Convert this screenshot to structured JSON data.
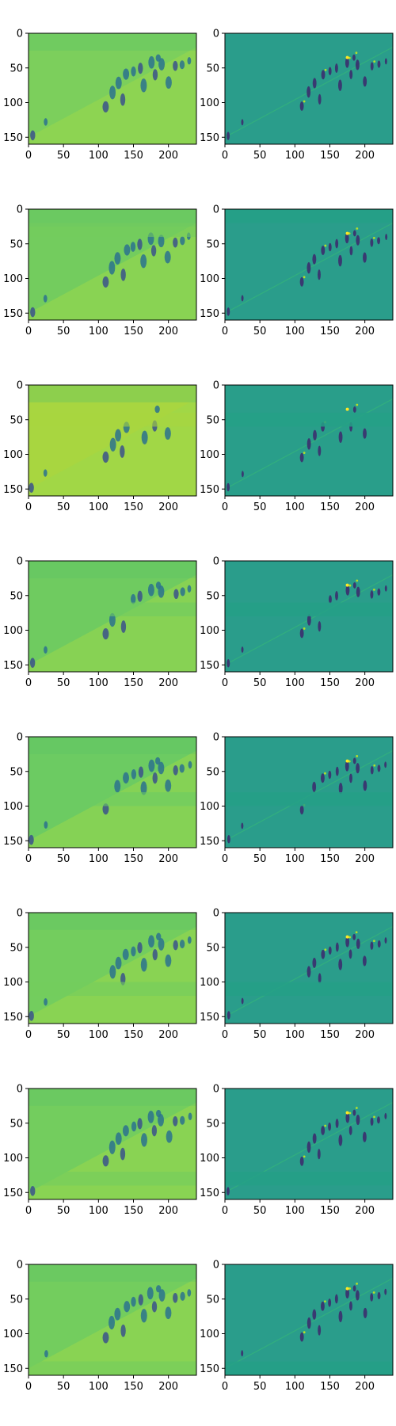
{
  "chart_data": {
    "type": "heatmap",
    "title": "",
    "layout": {
      "rows": 8,
      "cols": 2
    },
    "axes_template": {
      "xlim": [
        0,
        240
      ],
      "ylim": [
        160,
        0
      ],
      "xticks": [
        0,
        50,
        100,
        150,
        200
      ],
      "yticks": [
        0,
        50,
        100,
        150
      ],
      "xtick_labels": [
        "0",
        "50",
        "100",
        "150",
        "200"
      ],
      "ytick_labels": [
        "0",
        "50",
        "100",
        "150"
      ]
    },
    "colormap": "viridis",
    "panels_left": [
      {
        "row": 0,
        "band_start": null,
        "band_end": null,
        "background": "#7ccf5c",
        "dark_spots": 14
      },
      {
        "row": 1,
        "band_start": 20,
        "band_end": 40,
        "background": "#73cc5e",
        "dark_spots": 14
      },
      {
        "row": 2,
        "band_start": 40,
        "band_end": 60,
        "background": "#a8d640",
        "dark_spots": 12
      },
      {
        "row": 3,
        "band_start": 60,
        "band_end": 80,
        "background": "#6fcb60",
        "dark_spots": 14
      },
      {
        "row": 4,
        "band_start": 80,
        "band_end": 100,
        "background": "#6ccb62",
        "dark_spots": 14
      },
      {
        "row": 5,
        "band_start": 100,
        "band_end": 120,
        "background": "#73cd5e",
        "dark_spots": 14
      },
      {
        "row": 6,
        "band_start": 120,
        "band_end": 140,
        "background": "#73cd5e",
        "dark_spots": 14
      },
      {
        "row": 7,
        "band_start": 140,
        "band_end": 160,
        "background": "#73cd5e",
        "dark_spots": 14
      }
    ],
    "panels_right": [
      {
        "row": 0,
        "band_start": null,
        "band_end": null,
        "background": "#2a9d8b"
      },
      {
        "row": 1,
        "band_start": 0,
        "band_end": 20,
        "background": "#2a9d8b"
      },
      {
        "row": 2,
        "band_start": 40,
        "band_end": 60,
        "background": "#299e8a"
      },
      {
        "row": 3,
        "band_start": 60,
        "band_end": 80,
        "background": "#2a9d8b"
      },
      {
        "row": 4,
        "band_start": 80,
        "band_end": 100,
        "background": "#2a9d8b"
      },
      {
        "row": 5,
        "band_start": 100,
        "band_end": 120,
        "background": "#2a9d8b"
      },
      {
        "row": 6,
        "band_start": 120,
        "band_end": 140,
        "background": "#2a9d8b"
      },
      {
        "row": 7,
        "band_start": 140,
        "band_end": 160,
        "background": "#2a9d8b"
      }
    ],
    "grid": false,
    "legend": "none"
  }
}
